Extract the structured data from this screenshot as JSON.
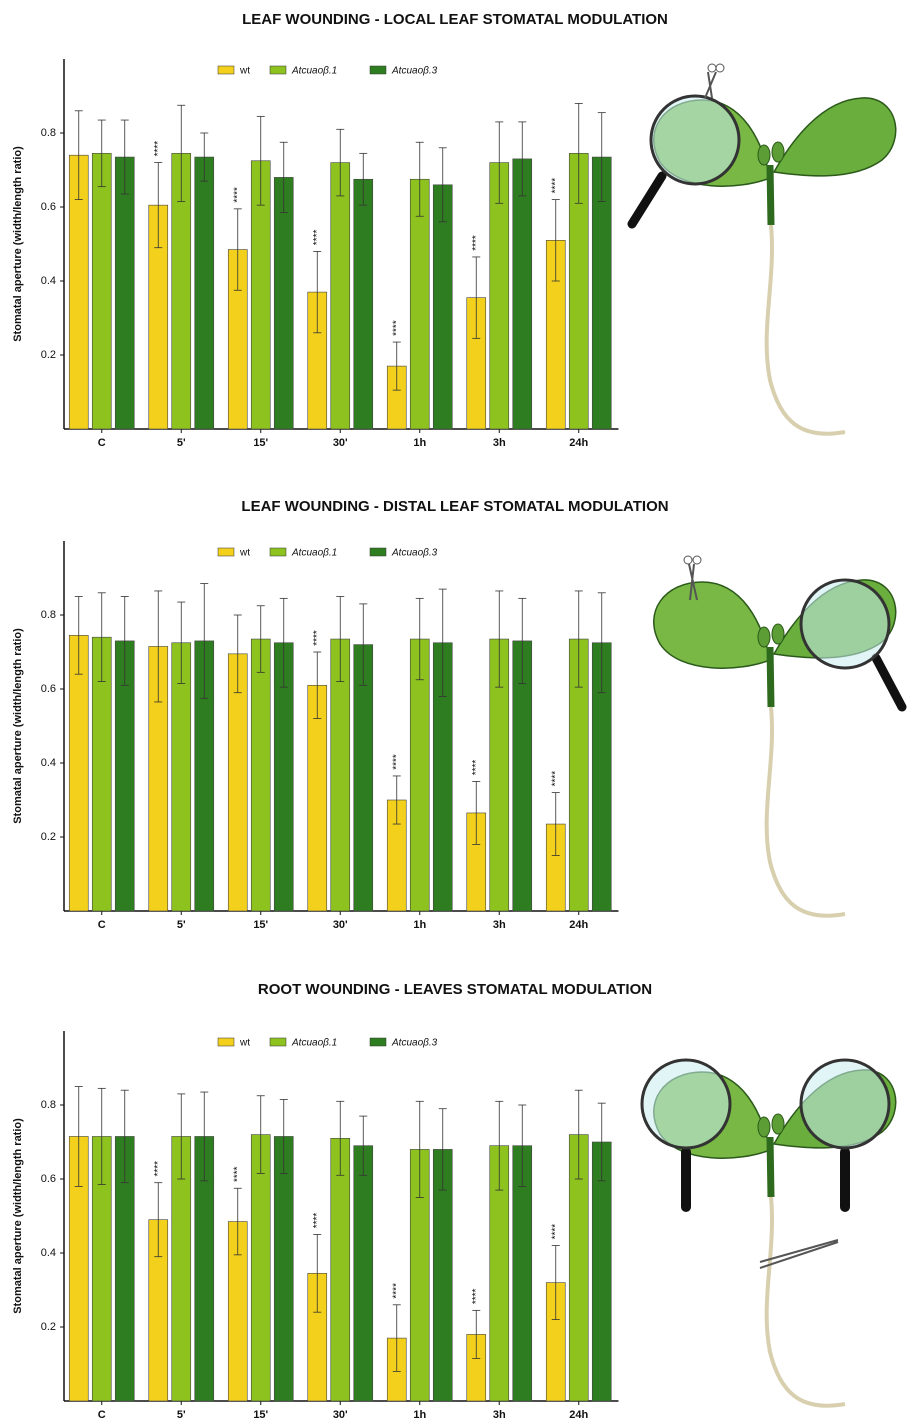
{
  "chart_data": [
    {
      "type": "bar",
      "title": "LEAF WOUNDING - LOCAL LEAF STOMATAL MODULATION",
      "ylabel": "Stomatal aperture (width/length ratio)",
      "categories": [
        "C",
        "5'",
        "15'",
        "30'",
        "1h",
        "3h",
        "24h"
      ],
      "series": [
        {
          "name": "wt",
          "color": "#f2d01c",
          "values": [
            0.74,
            0.605,
            0.485,
            0.37,
            0.17,
            0.355,
            0.51
          ],
          "errors": [
            0.12,
            0.115,
            0.11,
            0.11,
            0.065,
            0.11,
            0.11
          ],
          "annotations": [
            null,
            "****",
            "****",
            "****",
            "****",
            "****",
            "****"
          ]
        },
        {
          "name": "Atcuaoβ.1",
          "color": "#8dc21f",
          "values": [
            0.745,
            0.745,
            0.725,
            0.72,
            0.675,
            0.72,
            0.745
          ],
          "errors": [
            0.09,
            0.13,
            0.12,
            0.09,
            0.1,
            0.11,
            0.135
          ]
        },
        {
          "name": "Atcuaoβ.3",
          "color": "#2f7d21",
          "values": [
            0.735,
            0.735,
            0.68,
            0.675,
            0.66,
            0.73,
            0.735
          ],
          "errors": [
            0.1,
            0.065,
            0.095,
            0.07,
            0.1,
            0.1,
            0.12
          ]
        }
      ],
      "ylim": [
        0,
        1
      ],
      "yticks": [
        0.2,
        0.4,
        0.6,
        0.8
      ],
      "legend": "top"
    },
    {
      "type": "bar",
      "title": "LEAF WOUNDING - DISTAL LEAF STOMATAL MODULATION",
      "ylabel": "Stomatal aperture (width/length ratio)",
      "categories": [
        "C",
        "5'",
        "15'",
        "30'",
        "1h",
        "3h",
        "24h"
      ],
      "series": [
        {
          "name": "wt",
          "color": "#f2d01c",
          "values": [
            0.745,
            0.715,
            0.695,
            0.61,
            0.3,
            0.265,
            0.235
          ],
          "errors": [
            0.105,
            0.15,
            0.105,
            0.09,
            0.065,
            0.085,
            0.085
          ],
          "annotations": [
            null,
            null,
            null,
            "****",
            "****",
            "****",
            "****"
          ]
        },
        {
          "name": "Atcuaoβ.1",
          "color": "#8dc21f",
          "values": [
            0.74,
            0.725,
            0.735,
            0.735,
            0.735,
            0.735,
            0.735
          ],
          "errors": [
            0.12,
            0.11,
            0.09,
            0.115,
            0.11,
            0.13,
            0.13
          ]
        },
        {
          "name": "Atcuaoβ.3",
          "color": "#2f7d21",
          "values": [
            0.73,
            0.73,
            0.725,
            0.72,
            0.725,
            0.73,
            0.725
          ],
          "errors": [
            0.12,
            0.155,
            0.12,
            0.11,
            0.145,
            0.115,
            0.135
          ]
        }
      ],
      "ylim": [
        0,
        1
      ],
      "yticks": [
        0.2,
        0.4,
        0.6,
        0.8
      ],
      "legend": "top"
    },
    {
      "type": "bar",
      "title": "ROOT WOUNDING - LEAVES STOMATAL MODULATION",
      "ylabel": "Stomatal aperture (width/length ratio)",
      "categories": [
        "C",
        "5'",
        "15'",
        "30'",
        "1h",
        "3h",
        "24h"
      ],
      "series": [
        {
          "name": "wt",
          "color": "#f2d01c",
          "values": [
            0.715,
            0.49,
            0.485,
            0.345,
            0.17,
            0.18,
            0.32
          ],
          "errors": [
            0.135,
            0.1,
            0.09,
            0.105,
            0.09,
            0.065,
            0.1
          ],
          "annotations": [
            null,
            "****",
            "****",
            "****",
            "****",
            "****",
            "****"
          ]
        },
        {
          "name": "Atcuaoβ.1",
          "color": "#8dc21f",
          "values": [
            0.715,
            0.715,
            0.72,
            0.71,
            0.68,
            0.69,
            0.72
          ],
          "errors": [
            0.13,
            0.115,
            0.105,
            0.1,
            0.13,
            0.12,
            0.12
          ]
        },
        {
          "name": "Atcuaoβ.3",
          "color": "#2f7d21",
          "values": [
            0.715,
            0.715,
            0.715,
            0.69,
            0.68,
            0.69,
            0.7
          ],
          "errors": [
            0.125,
            0.12,
            0.1,
            0.08,
            0.11,
            0.11,
            0.105
          ]
        }
      ],
      "ylim": [
        0,
        1
      ],
      "yticks": [
        0.2,
        0.4,
        0.6,
        0.8
      ],
      "legend": "top"
    }
  ]
}
